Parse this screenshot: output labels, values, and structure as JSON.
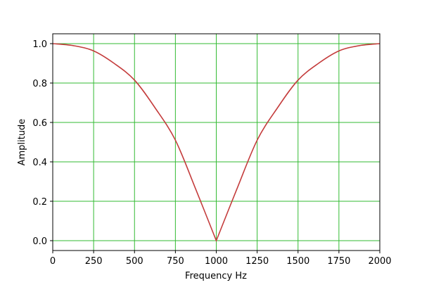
{
  "chart_data": {
    "type": "line",
    "title": "",
    "xlabel": "Frequency Hz",
    "ylabel": "Amplitude",
    "xlim": [
      0,
      2000
    ],
    "ylim": [
      -0.05,
      1.05
    ],
    "xticks": [
      "0",
      "250",
      "500",
      "750",
      "1000",
      "1250",
      "1500",
      "1750",
      "2000"
    ],
    "yticks": [
      "0.0",
      "0.2",
      "0.4",
      "0.6",
      "0.8",
      "1.0"
    ],
    "grid": true,
    "grid_color": "#33bb33",
    "series": [
      {
        "color": "#c43c3c",
        "x": [
          0,
          125,
          250,
          375,
          500,
          625,
          750,
          875,
          1000,
          1125,
          1250,
          1375,
          1500,
          1625,
          1750,
          1875,
          2000
        ],
        "y": [
          1.0,
          0.99,
          0.963,
          0.9,
          0.815,
          0.675,
          0.51,
          0.26,
          0.0,
          0.26,
          0.51,
          0.675,
          0.815,
          0.9,
          0.963,
          0.99,
          1.0
        ]
      }
    ]
  }
}
